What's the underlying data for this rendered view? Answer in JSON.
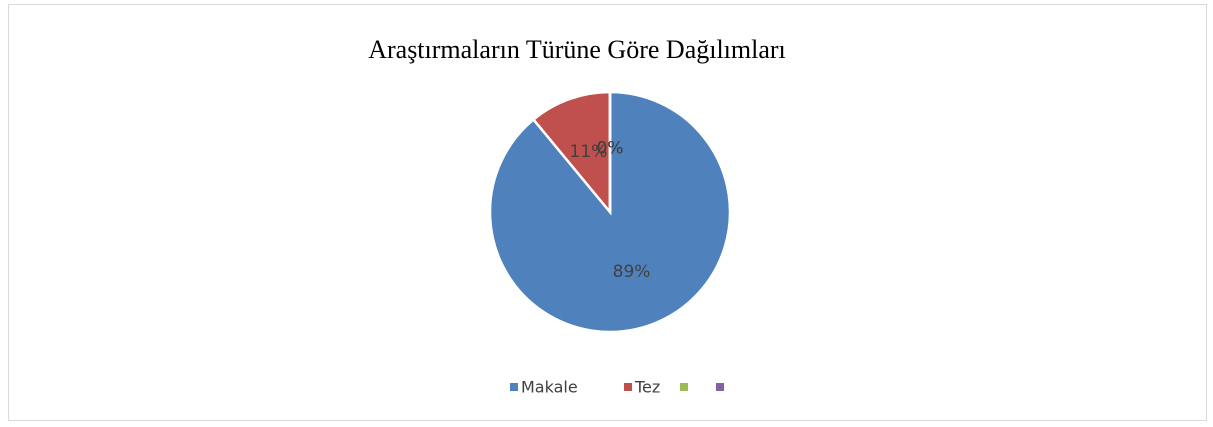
{
  "chart_data": {
    "type": "pie",
    "title": "Araştırmaların Türüne Göre Dağılımları",
    "categories": [
      "Makale",
      "Tez",
      null,
      null
    ],
    "values": [
      89,
      11,
      0,
      0
    ],
    "value_labels": [
      "89%",
      "11%",
      "0%",
      "0%"
    ],
    "colors": [
      "#4f81bd",
      "#c0504d",
      "#9bbb59",
      "#8064a2"
    ],
    "legend": "bottom"
  }
}
